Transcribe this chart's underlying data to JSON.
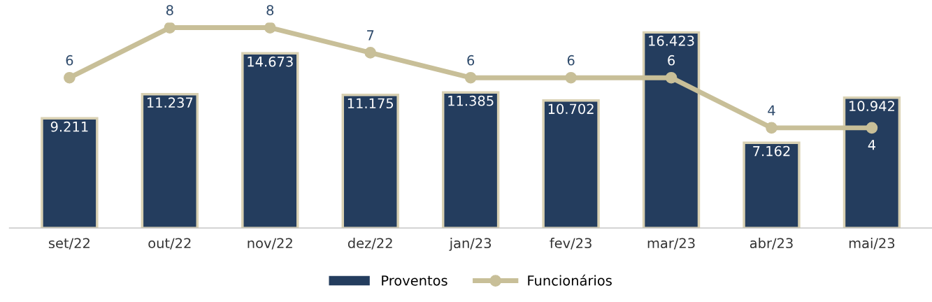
{
  "chart_data": {
    "type": "bar",
    "categories": [
      "set/22",
      "out/22",
      "nov/22",
      "dez/22",
      "jan/23",
      "fev/23",
      "mar/23",
      "abr/23",
      "mai/23"
    ],
    "series": [
      {
        "name": "Proventos",
        "color": "#243d5e",
        "values": [
          9.211,
          11.237,
          14.673,
          11.175,
          11.385,
          10.702,
          16.423,
          7.162,
          10.942
        ]
      },
      {
        "name": "Funcionários",
        "type": "line",
        "axis": "y2",
        "color": "#c8bf98",
        "marker": "circle",
        "values": [
          6,
          8,
          8,
          7,
          6,
          6,
          6,
          4,
          4
        ]
      }
    ],
    "data_labels": true,
    "tick_labels": "x",
    "grid": false,
    "legend": "bottom"
  }
}
